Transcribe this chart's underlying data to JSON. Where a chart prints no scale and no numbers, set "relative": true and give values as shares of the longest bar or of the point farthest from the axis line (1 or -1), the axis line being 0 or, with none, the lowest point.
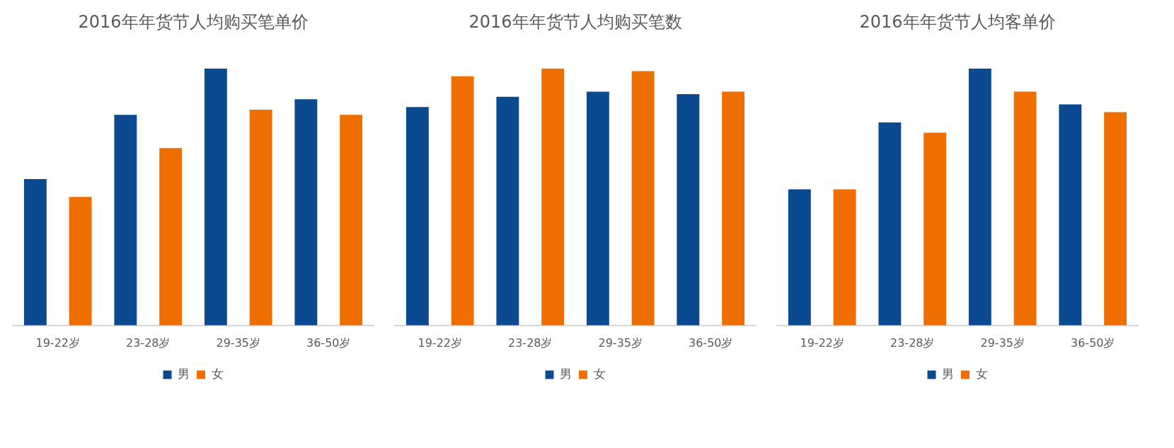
{
  "chart_data": [
    {
      "type": "bar",
      "title": "2016年年货节人均购买笔单价",
      "categories": [
        "19-22岁",
        "23-28岁",
        "29-35岁",
        "36-50岁"
      ],
      "relative": true,
      "legend": "bottom",
      "series": [
        {
          "name": "男",
          "color": "#0b4a91",
          "values": [
            0.57,
            0.82,
            1,
            0.88
          ]
        },
        {
          "name": "女",
          "color": "#ee6f00",
          "values": [
            0.5,
            0.69,
            0.84,
            0.82
          ]
        }
      ]
    },
    {
      "type": "bar",
      "title": "2016年年货节人均购买笔数",
      "categories": [
        "19-22岁",
        "23-28岁",
        "29-35岁",
        "36-50岁"
      ],
      "relative": true,
      "legend": "bottom",
      "series": [
        {
          "name": "男",
          "color": "#0b4a91",
          "values": [
            0.85,
            0.89,
            0.91,
            0.9
          ]
        },
        {
          "name": "女",
          "color": "#ee6f00",
          "values": [
            0.97,
            1,
            0.99,
            0.91
          ]
        }
      ]
    },
    {
      "type": "bar",
      "title": "2016年年货节人均客单价",
      "categories": [
        "19-22岁",
        "23-28岁",
        "29-35岁",
        "36-50岁"
      ],
      "relative": true,
      "legend": "bottom",
      "series": [
        {
          "name": "男",
          "color": "#0b4a91",
          "values": [
            0.53,
            0.79,
            1,
            0.86
          ]
        },
        {
          "name": "女",
          "color": "#ee6f00",
          "values": [
            0.53,
            0.75,
            0.91,
            0.83
          ]
        }
      ]
    }
  ]
}
